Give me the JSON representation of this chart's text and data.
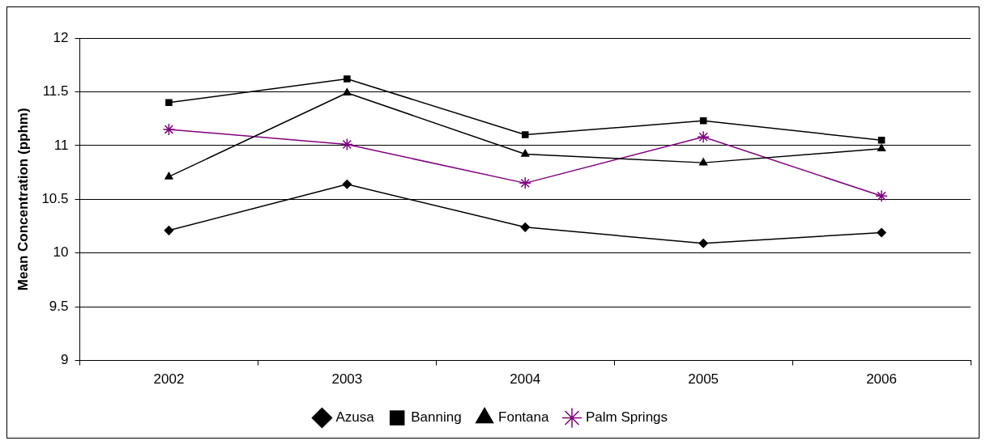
{
  "chart_data": {
    "type": "line",
    "ylabel": "Mean Concentration (pphm)",
    "categories": [
      "2002",
      "2003",
      "2004",
      "2005",
      "2006"
    ],
    "series": [
      {
        "name": "Azusa",
        "color": "#000000",
        "marker": "diamond",
        "values": [
          10.21,
          10.64,
          10.24,
          10.09,
          10.19
        ]
      },
      {
        "name": "Banning",
        "color": "#000000",
        "marker": "square",
        "values": [
          11.4,
          11.62,
          11.1,
          11.23,
          11.05
        ]
      },
      {
        "name": "Fontana",
        "color": "#000000",
        "marker": "triangle",
        "values": [
          10.71,
          11.49,
          10.92,
          10.84,
          10.97
        ]
      },
      {
        "name": "Palm Springs",
        "color": "#800080",
        "marker": "cross",
        "values": [
          11.15,
          11.01,
          10.65,
          11.08,
          10.53
        ]
      }
    ],
    "ylim": [
      9,
      12
    ],
    "yticks": [
      9,
      9.5,
      10,
      10.5,
      11,
      11.5,
      12
    ],
    "grid": "y",
    "legend": "bottom"
  }
}
